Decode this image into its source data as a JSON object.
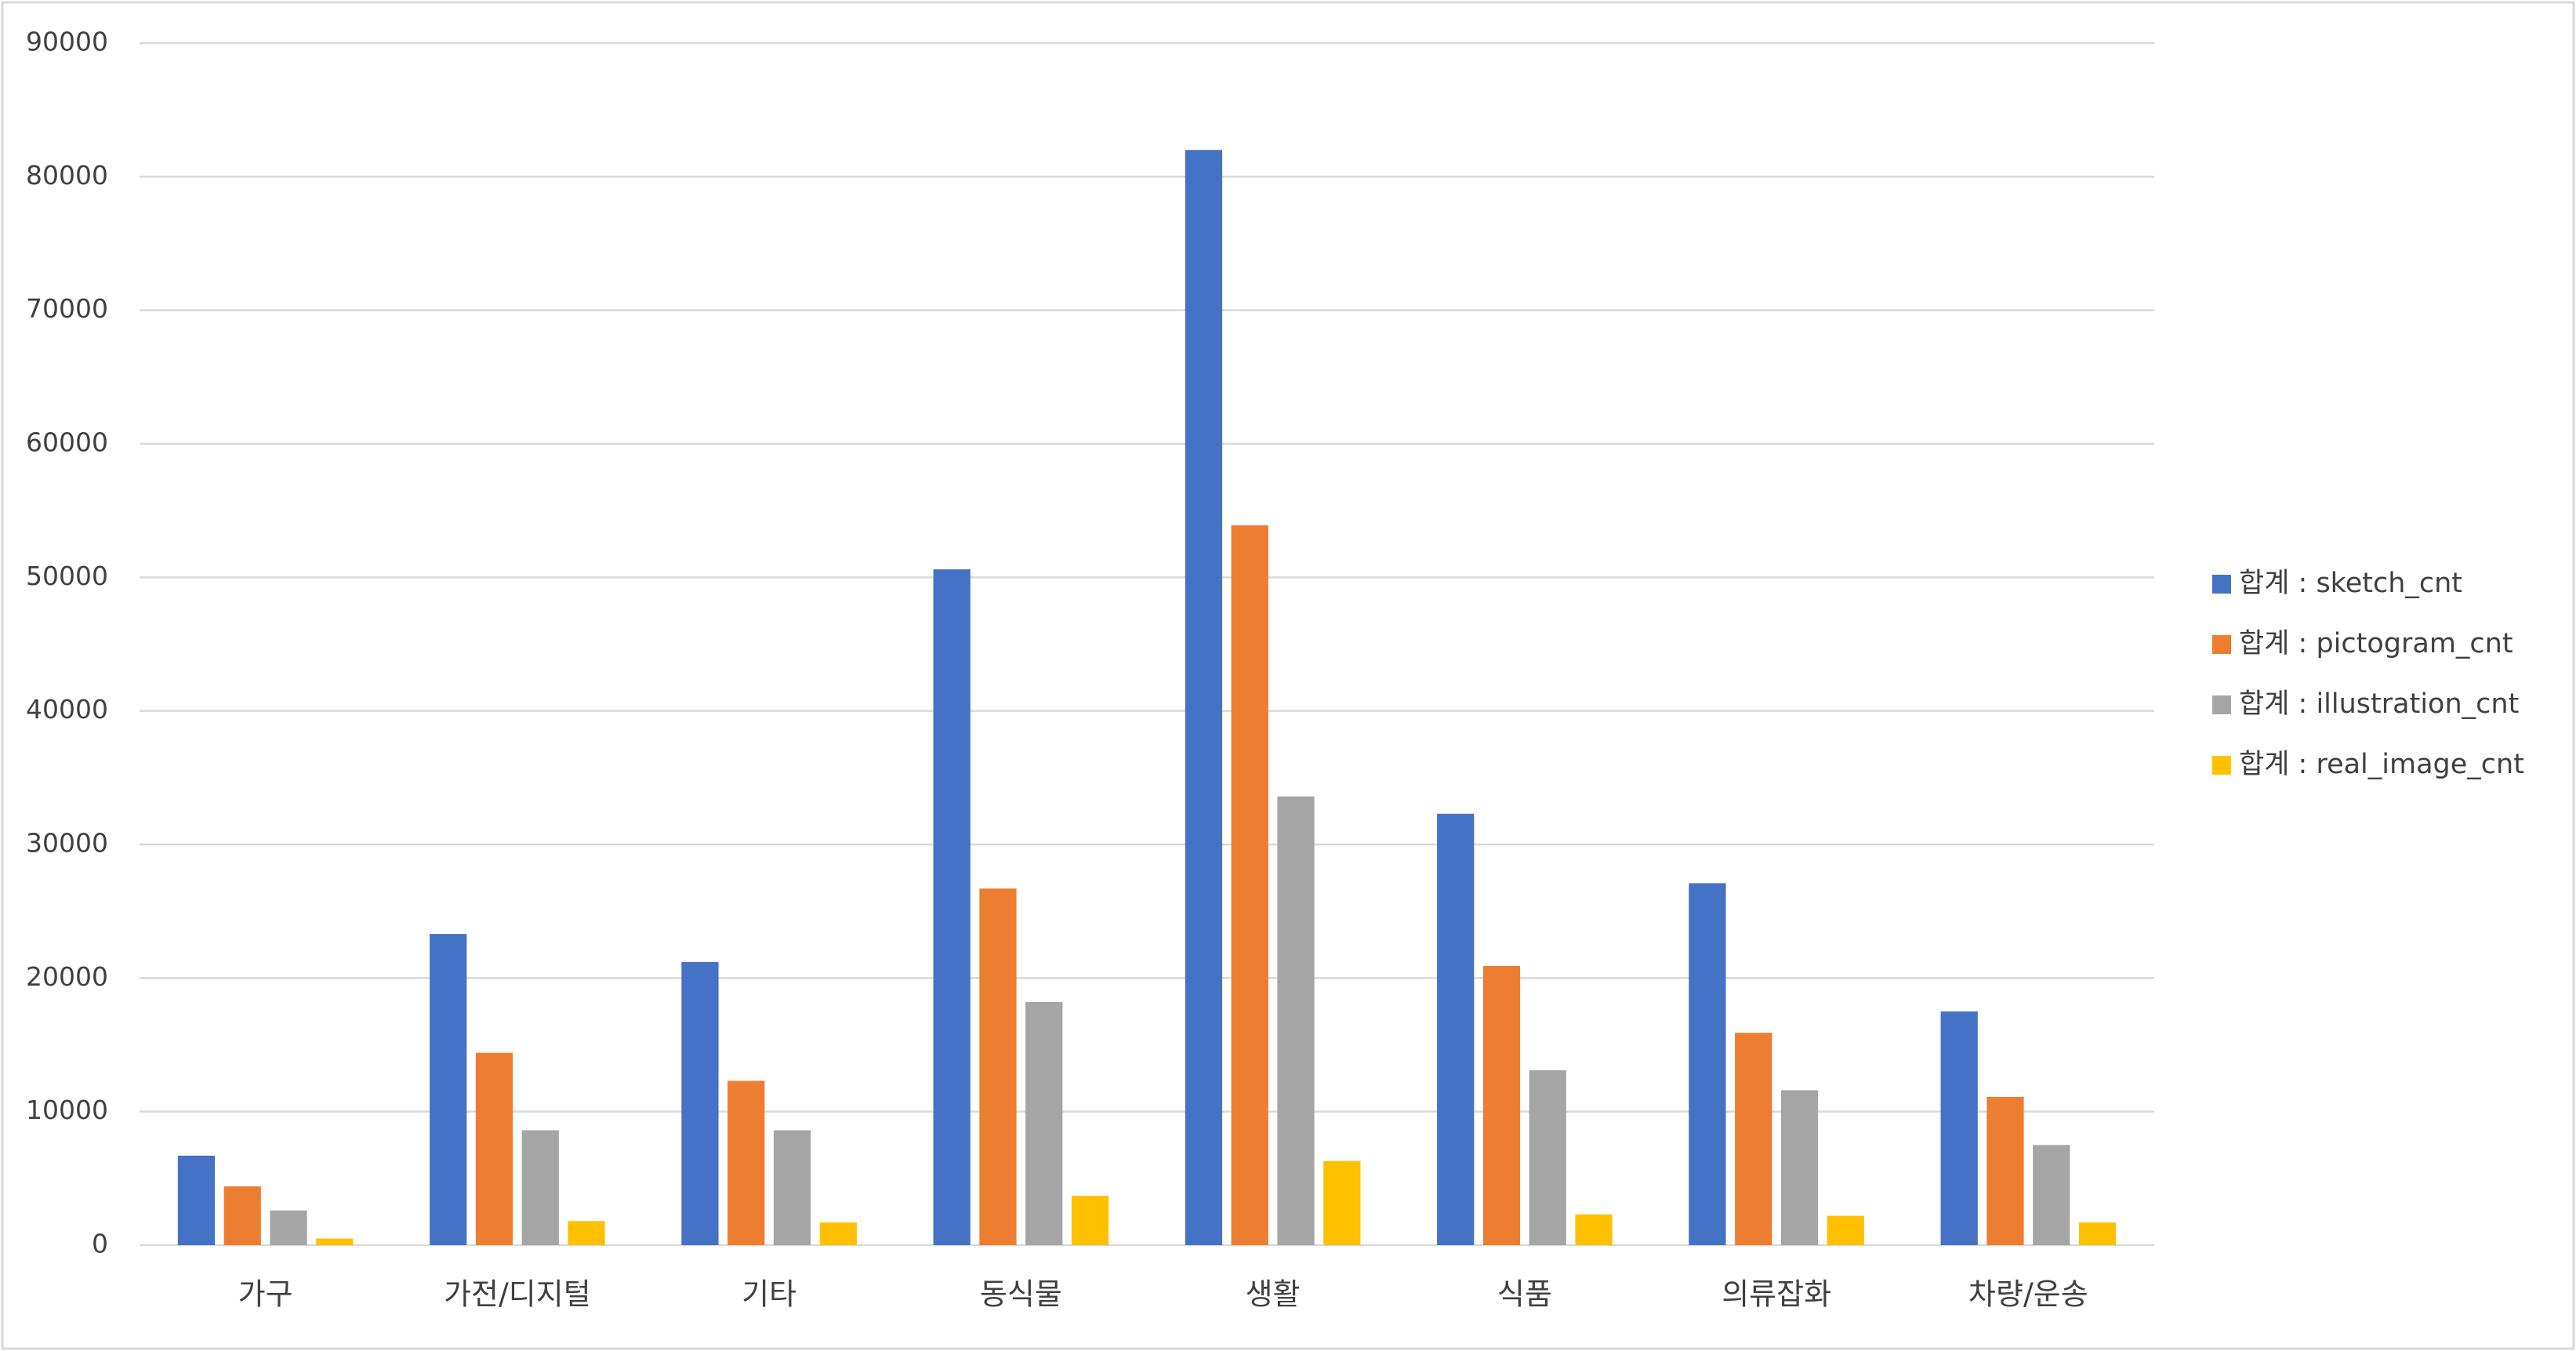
{
  "chart_data": {
    "type": "bar",
    "categories": [
      "가구",
      "가전/디지털",
      "기타",
      "동식물",
      "생활",
      "식품",
      "의류잡화",
      "차량/운송"
    ],
    "series": [
      {
        "name": "합계 : sketch_cnt",
        "color": "#4472c4",
        "values": [
          6700,
          23300,
          21200,
          50600,
          82000,
          32300,
          27100,
          17500
        ]
      },
      {
        "name": "합계 : pictogram_cnt",
        "color": "#ed7d31",
        "values": [
          4400,
          14400,
          12300,
          26700,
          53900,
          20900,
          15900,
          11100
        ]
      },
      {
        "name": "합계 : illustration_cnt",
        "color": "#a5a5a5",
        "values": [
          2600,
          8600,
          8600,
          18200,
          33600,
          13100,
          11600,
          7500
        ]
      },
      {
        "name": "합계 : real_image_cnt",
        "color": "#ffc000",
        "values": [
          500,
          1800,
          1700,
          3700,
          6300,
          2300,
          2200,
          1700
        ]
      }
    ],
    "ylim": [
      0,
      90000
    ],
    "yticks": [
      0,
      10000,
      20000,
      30000,
      40000,
      50000,
      60000,
      70000,
      80000,
      90000
    ],
    "grid": true,
    "legend": "right"
  }
}
